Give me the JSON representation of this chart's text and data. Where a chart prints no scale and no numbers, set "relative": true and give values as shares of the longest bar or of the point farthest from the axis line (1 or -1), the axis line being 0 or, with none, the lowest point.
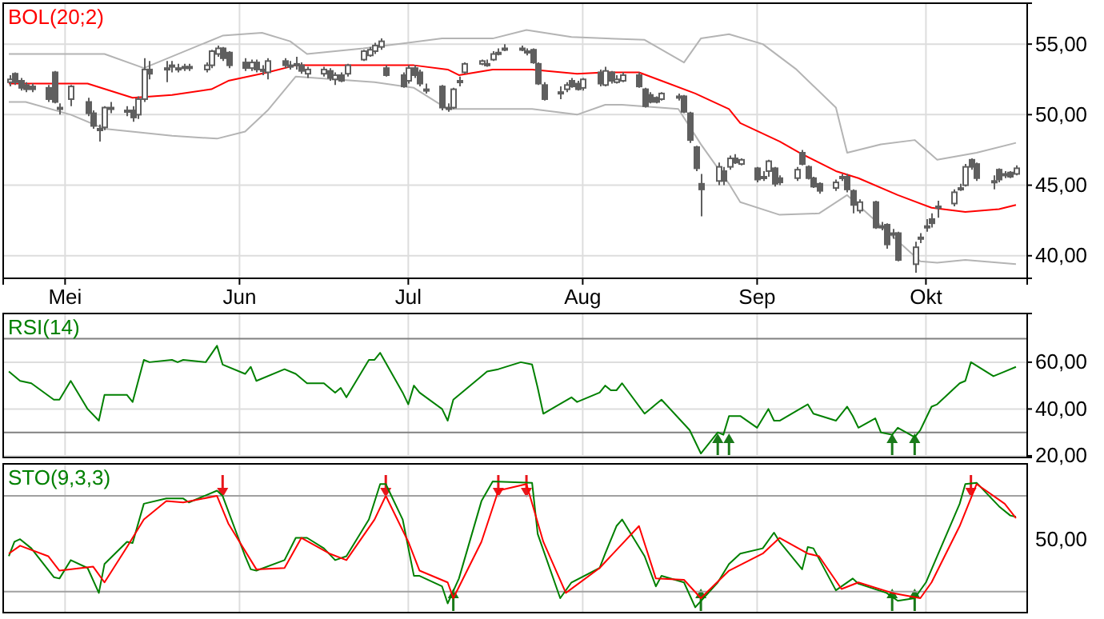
{
  "chart_data": [
    {
      "type": "candlestick",
      "title": "BOL(20;2)",
      "color": "#5f5f5f",
      "x": [
        "--04-21",
        "--04-22",
        "--04-23",
        "--04-24",
        "--04-25",
        "--04-28",
        "--04-29",
        "--04-30",
        "--05-02",
        "--05-05",
        "--05-06",
        "--05-07",
        "--05-08",
        "--05-09",
        "--05-12",
        "--05-13",
        "--05-14",
        "--05-15",
        "--05-16",
        "--05-19",
        "--05-20",
        "--05-21",
        "--05-22",
        "--05-23",
        "--05-26",
        "--05-27",
        "--05-28",
        "--05-29",
        "--05-30",
        "--06-02",
        "--06-03",
        "--06-04",
        "--06-05",
        "--06-06",
        "--06-09",
        "--06-10",
        "--06-11",
        "--06-12",
        "--06-13",
        "--06-16",
        "--06-17",
        "--06-18",
        "--06-19",
        "--06-20",
        "--06-23",
        "--06-24",
        "--06-25",
        "--06-26",
        "--06-27",
        "--06-30",
        "--07-01",
        "--07-02",
        "--07-03",
        "--07-04",
        "--07-07",
        "--07-08",
        "--07-09",
        "--07-10",
        "--07-11",
        "--07-14",
        "--07-15",
        "--07-16",
        "--07-17",
        "--07-18",
        "--07-21",
        "--07-22",
        "--07-23",
        "--07-24",
        "--07-25",
        "--07-28",
        "--07-29",
        "--07-30",
        "--07-31",
        "--08-01",
        "--08-04",
        "--08-05",
        "--08-06",
        "--08-07",
        "--08-08",
        "--08-11",
        "--08-12",
        "--08-13",
        "--08-14",
        "--08-15",
        "--08-18",
        "--08-19",
        "--08-20",
        "--08-21",
        "--08-22",
        "--08-25",
        "--08-26",
        "--08-27",
        "--08-28",
        "--08-29",
        "--09-01",
        "--09-02",
        "--09-03",
        "--09-04",
        "--09-05",
        "--09-08",
        "--09-09",
        "--09-10",
        "--09-11",
        "--09-12",
        "--09-15",
        "--09-16",
        "--09-17",
        "--09-18",
        "--09-19",
        "--09-22",
        "--09-23",
        "--09-24",
        "--09-25",
        "--09-26",
        "--09-29",
        "--09-30",
        "--10-01",
        "--10-02",
        "--10-03",
        "--10-06",
        "--10-07",
        "--10-08",
        "--10-09",
        "--10-10",
        "--10-13",
        "--10-14",
        "--10-15",
        "--10-16",
        "--10-17"
      ],
      "ohlc": [
        [
          52.3,
          52.8,
          52.0,
          52.5
        ],
        [
          52.9,
          53.0,
          52.1,
          52.3
        ],
        [
          52.4,
          52.6,
          51.7,
          51.9
        ],
        [
          52.1,
          52.3,
          51.6,
          51.8
        ],
        [
          52.0,
          52.2,
          51.6,
          51.8
        ],
        [
          51.9,
          52.1,
          50.9,
          51.1
        ],
        [
          53.0,
          53.1,
          50.8,
          50.9
        ],
        [
          50.5,
          50.8,
          50.0,
          50.4
        ],
        [
          51.1,
          52.1,
          50.6,
          52.0
        ],
        [
          50.9,
          51.2,
          49.9,
          50.1
        ],
        [
          50.1,
          50.3,
          49.0,
          49.2
        ],
        [
          49.0,
          49.3,
          48.1,
          48.9
        ],
        [
          49.1,
          50.6,
          48.9,
          50.5
        ],
        [
          50.5,
          50.9,
          50.1,
          50.5
        ],
        [
          50.3,
          50.6,
          49.9,
          50.3
        ],
        [
          50.3,
          50.6,
          49.5,
          49.8
        ],
        [
          50.0,
          51.3,
          49.7,
          51.1
        ],
        [
          51.1,
          54.0,
          50.9,
          53.2
        ],
        [
          53.2,
          53.8,
          52.5,
          52.9
        ],
        [
          53.3,
          53.8,
          52.3,
          53.3
        ],
        [
          53.5,
          53.8,
          53.0,
          53.5
        ],
        [
          53.3,
          53.6,
          53.0,
          53.3
        ],
        [
          53.4,
          53.6,
          53.1,
          53.4
        ],
        [
          53.4,
          53.6,
          53.1,
          53.4
        ],
        [
          53.2,
          53.7,
          53.0,
          53.5
        ],
        [
          53.5,
          54.6,
          53.3,
          54.5
        ],
        [
          54.3,
          54.9,
          54.1,
          54.7
        ],
        [
          54.7,
          54.8,
          53.8,
          54.0
        ],
        [
          54.4,
          54.5,
          53.3,
          53.5
        ],
        [
          53.7,
          54.0,
          53.1,
          53.3
        ],
        [
          53.3,
          53.9,
          53.1,
          53.7
        ],
        [
          53.7,
          53.9,
          53.0,
          53.2
        ],
        [
          53.2,
          53.5,
          52.8,
          53.2
        ],
        [
          53.0,
          54.0,
          52.5,
          53.8
        ],
        [
          53.8,
          54.0,
          53.3,
          53.5
        ],
        [
          53.5,
          53.8,
          53.2,
          53.5
        ],
        [
          53.6,
          54.1,
          53.2,
          53.6
        ],
        [
          53.5,
          53.7,
          52.9,
          53.1
        ],
        [
          52.9,
          53.4,
          52.6,
          53.2
        ],
        [
          52.9,
          53.4,
          52.7,
          53.2
        ],
        [
          53.1,
          53.3,
          52.4,
          52.6
        ],
        [
          52.5,
          53.0,
          52.1,
          52.8
        ],
        [
          52.8,
          53.0,
          52.3,
          52.4
        ],
        [
          52.9,
          53.6,
          52.7,
          53.5
        ],
        [
          53.9,
          54.6,
          53.8,
          54.5
        ],
        [
          54.2,
          54.8,
          54.1,
          54.6
        ],
        [
          54.5,
          55.1,
          54.3,
          54.9
        ],
        [
          54.8,
          55.4,
          54.6,
          55.2
        ],
        [
          53.3,
          53.5,
          52.7,
          52.8
        ],
        [
          52.8,
          53.0,
          51.9,
          52.0
        ],
        [
          52.4,
          53.5,
          52.2,
          53.3
        ],
        [
          53.3,
          53.5,
          52.6,
          52.8
        ],
        [
          53.0,
          53.2,
          52.0,
          52.2
        ],
        [
          51.8,
          52.2,
          51.5,
          51.8
        ],
        [
          52.0,
          52.1,
          50.3,
          50.5
        ],
        [
          50.5,
          50.8,
          50.2,
          50.5
        ],
        [
          50.5,
          51.9,
          50.4,
          51.8
        ],
        [
          52.4,
          52.7,
          52.0,
          52.4
        ],
        [
          53.0,
          53.7,
          52.9,
          53.6
        ],
        [
          53.6,
          53.9,
          53.5,
          53.8
        ],
        [
          53.6,
          53.9,
          53.4,
          53.6
        ],
        [
          53.9,
          54.5,
          53.8,
          54.3
        ],
        [
          54.4,
          54.7,
          54.2,
          54.4
        ],
        [
          54.7,
          55.0,
          54.5,
          54.7
        ],
        [
          54.7,
          54.9,
          54.5,
          54.7
        ],
        [
          54.5,
          54.7,
          54.2,
          54.5
        ],
        [
          54.6,
          54.7,
          53.6,
          53.7
        ],
        [
          53.6,
          53.7,
          52.1,
          52.2
        ],
        [
          52.1,
          52.3,
          51.0,
          51.1
        ],
        [
          51.6,
          52.0,
          51.1,
          51.6
        ],
        [
          51.8,
          52.3,
          51.6,
          52.1
        ],
        [
          52.4,
          52.6,
          51.9,
          52.0
        ],
        [
          52.2,
          52.4,
          51.7,
          51.8
        ],
        [
          51.9,
          52.6,
          51.7,
          52.5
        ],
        [
          53.0,
          53.2,
          52.0,
          52.2
        ],
        [
          52.1,
          53.4,
          52.0,
          53.1
        ],
        [
          53.0,
          53.1,
          52.2,
          52.4
        ],
        [
          52.3,
          52.8,
          52.2,
          52.5
        ],
        [
          52.4,
          53.0,
          52.3,
          52.8
        ],
        [
          52.8,
          53.0,
          51.9,
          52.0
        ],
        [
          51.8,
          51.9,
          50.5,
          50.6
        ],
        [
          51.4,
          51.6,
          50.8,
          50.9
        ],
        [
          51.2,
          51.3,
          50.8,
          50.9
        ],
        [
          51.1,
          51.6,
          51.0,
          51.5
        ],
        [
          51.3,
          51.5,
          51.0,
          51.3
        ],
        [
          51.3,
          51.4,
          50.1,
          50.2
        ],
        [
          50.1,
          50.2,
          48.0,
          48.2
        ],
        [
          47.7,
          47.8,
          46.0,
          46.2
        ],
        [
          45.1,
          45.8,
          42.8,
          44.7
        ],
        [
          45.3,
          46.6,
          45.0,
          46.3
        ],
        [
          46.0,
          46.3,
          45.0,
          45.3
        ],
        [
          46.3,
          47.1,
          46.1,
          46.9
        ],
        [
          46.9,
          47.2,
          46.5,
          46.6
        ],
        [
          46.5,
          46.9,
          46.4,
          46.8
        ],
        [
          46.2,
          46.3,
          45.2,
          45.4
        ],
        [
          45.6,
          46.0,
          45.3,
          45.6
        ],
        [
          46.0,
          46.8,
          45.6,
          46.7
        ],
        [
          46.2,
          46.3,
          44.9,
          45.1
        ],
        [
          45.5,
          45.7,
          45.0,
          45.2
        ],
        [
          45.5,
          46.3,
          45.3,
          46.1
        ],
        [
          47.3,
          47.5,
          46.4,
          46.5
        ],
        [
          46.3,
          46.4,
          45.4,
          45.5
        ],
        [
          45.5,
          45.6,
          44.8,
          44.9
        ],
        [
          45.1,
          45.2,
          44.4,
          44.6
        ],
        [
          44.8,
          45.4,
          44.6,
          45.2
        ],
        [
          45.6,
          45.8,
          45.3,
          45.6
        ],
        [
          45.6,
          45.8,
          44.5,
          44.7
        ],
        [
          44.6,
          44.7,
          43.0,
          43.6
        ],
        [
          43.2,
          44.0,
          43.0,
          43.8
        ],
        [
          43.8,
          43.9,
          41.9,
          42.0
        ],
        [
          42.1,
          42.4,
          41.8,
          42.1
        ],
        [
          42.2,
          42.3,
          40.5,
          40.8
        ],
        [
          41.6,
          41.9,
          41.2,
          41.6
        ],
        [
          41.6,
          41.7,
          39.6,
          39.7
        ],
        [
          39.4,
          41.0,
          38.8,
          40.6
        ],
        [
          41.3,
          41.6,
          40.9,
          41.3
        ],
        [
          42.1,
          42.6,
          41.7,
          42.1
        ],
        [
          42.6,
          43.0,
          42.0,
          42.3
        ],
        [
          43.5,
          43.9,
          42.7,
          43.5
        ],
        [
          43.7,
          44.7,
          43.5,
          44.5
        ],
        [
          44.8,
          45.1,
          44.6,
          44.8
        ],
        [
          45.0,
          46.5,
          44.9,
          46.3
        ],
        [
          46.8,
          46.9,
          46.1,
          46.3
        ],
        [
          46.5,
          46.6,
          45.3,
          45.5
        ],
        [
          45.3,
          45.7,
          44.7,
          45.3
        ],
        [
          46.1,
          46.2,
          45.2,
          45.4
        ],
        [
          45.8,
          46.0,
          45.5,
          45.8
        ],
        [
          45.9,
          46.0,
          45.5,
          45.6
        ],
        [
          45.8,
          46.4,
          45.7,
          46.2
        ]
      ],
      "series": [
        {
          "type": "line",
          "color": "#b4b4b4",
          "x": [
            "--04-21",
            "--05-08",
            "--05-15",
            "--05-29",
            "--06-05",
            "--06-10",
            "--06-13",
            "--06-23",
            "--07-07",
            "--07-16",
            "--07-22",
            "--07-30",
            "--08-12",
            "--08-19",
            "--08-22",
            "--08-27",
            "--09-02",
            "--09-08",
            "--09-15",
            "--09-17",
            "--09-23",
            "--09-29",
            "--10-03",
            "--10-10",
            "--10-17"
          ],
          "values": [
            54.3,
            54.3,
            53.3,
            55.6,
            55.8,
            55.2,
            54.3,
            54.7,
            55.4,
            55.4,
            56.0,
            55.5,
            55.3,
            53.7,
            55.4,
            55.7,
            55.0,
            53.2,
            50.5,
            47.3,
            47.9,
            48.2,
            46.8,
            47.3,
            48.0
          ]
        },
        {
          "type": "line",
          "color": "#ff0000",
          "x": [
            "--04-21",
            "--05-05",
            "--05-13",
            "--05-20",
            "--05-27",
            "--05-30",
            "--06-06",
            "--06-11",
            "--06-25",
            "--07-02",
            "--07-08",
            "--07-10",
            "--07-16",
            "--07-23",
            "--07-31",
            "--08-05",
            "--08-11",
            "--08-15",
            "--08-21",
            "--08-27",
            "--08-29",
            "--09-05",
            "--09-09",
            "--09-15",
            "--09-19",
            "--09-26",
            "--10-02",
            "--10-08",
            "--10-14",
            "--10-17"
          ],
          "values": [
            52.2,
            52.2,
            51.2,
            51.4,
            51.8,
            52.4,
            53.0,
            53.5,
            53.5,
            53.5,
            53.2,
            52.8,
            53.2,
            53.2,
            52.9,
            53.0,
            53.0,
            52.4,
            51.5,
            50.4,
            49.4,
            48.1,
            47.2,
            46.0,
            45.5,
            44.3,
            43.4,
            43.1,
            43.3,
            43.6
          ]
        },
        {
          "type": "line",
          "color": "#b4b4b4",
          "x": [
            "--04-21",
            "--04-24",
            "--05-02",
            "--05-08",
            "--05-20",
            "--05-28",
            "--06-02",
            "--06-06",
            "--06-11",
            "--06-25",
            "--07-02",
            "--07-08",
            "--07-23",
            "--07-31",
            "--08-05",
            "--08-08",
            "--08-18",
            "--08-22",
            "--08-27",
            "--08-29",
            "--09-05",
            "--09-12",
            "--09-17",
            "--09-25",
            "--09-30",
            "--10-03",
            "--10-08",
            "--10-17"
          ],
          "values": [
            50.9,
            50.9,
            50.0,
            49.0,
            48.5,
            48.3,
            48.8,
            50.3,
            52.7,
            52.3,
            51.9,
            50.4,
            50.4,
            50.0,
            50.7,
            50.7,
            50.4,
            47.9,
            45.1,
            43.8,
            42.9,
            43.0,
            44.3,
            41.4,
            39.6,
            39.5,
            39.7,
            39.4
          ]
        }
      ],
      "xlim": [
        "--04-20",
        "--10-19"
      ],
      "xticks": [
        {
          "value": "--05-01",
          "label": "Mei"
        },
        {
          "value": "--06-01",
          "label": "Jun"
        },
        {
          "value": "--07-01",
          "label": "Jul"
        },
        {
          "value": "--08-01",
          "label": "Aug"
        },
        {
          "value": "--09-01",
          "label": "Sep"
        },
        {
          "value": "--10-01",
          "label": "Okt"
        }
      ],
      "ylim": [
        38.4,
        57.9
      ],
      "yticks": [
        {
          "value": 40,
          "label": "40,00"
        },
        {
          "value": 45,
          "label": "45,00"
        },
        {
          "value": 50,
          "label": "50,00"
        },
        {
          "value": 55,
          "label": "55,00"
        }
      ],
      "grid": true
    },
    {
      "type": "line",
      "title": "RSI(14)",
      "series": [
        {
          "color": "#008000",
          "x": [
            "--04-21",
            "--04-23",
            "--04-25",
            "--04-29",
            "--04-30",
            "--05-02",
            "--05-05",
            "--05-07",
            "--05-08",
            "--05-12",
            "--05-13",
            "--05-15",
            "--05-16",
            "--05-20",
            "--05-21",
            "--05-22",
            "--05-26",
            "--05-28",
            "--05-29",
            "--06-02",
            "--06-03",
            "--06-04",
            "--06-09",
            "--06-11",
            "--06-13",
            "--06-16",
            "--06-18",
            "--06-19",
            "--06-20",
            "--06-24",
            "--06-25",
            "--06-26",
            "--06-30",
            "--07-01",
            "--07-02",
            "--07-03",
            "--07-07",
            "--07-08",
            "--07-09",
            "--07-14",
            "--07-15",
            "--07-17",
            "--07-21",
            "--07-23",
            "--07-24",
            "--07-25",
            "--07-30",
            "--07-31",
            "--08-04",
            "--08-05",
            "--08-06",
            "--08-07",
            "--08-08",
            "--08-12",
            "--08-14",
            "--08-15",
            "--08-20",
            "--08-22",
            "--08-25",
            "--08-26",
            "--08-27",
            "--08-29",
            "--09-01",
            "--09-03",
            "--09-04",
            "--09-05",
            "--09-10",
            "--09-11",
            "--09-15",
            "--09-17",
            "--09-18",
            "--09-19",
            "--09-22",
            "--09-23",
            "--09-25",
            "--09-26",
            "--09-29",
            "--09-30",
            "--10-02",
            "--10-03",
            "--10-07",
            "--10-08",
            "--10-09",
            "--10-13",
            "--10-15",
            "--10-17"
          ],
          "values": [
            56,
            52,
            51,
            44,
            44,
            52,
            40,
            35,
            46,
            46,
            43,
            61,
            60,
            61,
            60,
            61,
            60,
            67,
            59,
            55,
            58,
            52,
            57,
            55,
            51,
            51,
            47,
            49,
            45,
            61,
            61,
            64,
            47,
            42,
            50,
            47,
            40,
            35,
            44,
            54,
            56,
            57,
            60,
            59,
            49,
            38,
            45,
            43,
            47,
            50,
            48,
            48,
            51,
            38,
            42,
            44,
            31,
            21,
            30,
            29,
            37,
            37,
            32,
            40,
            35,
            35,
            42,
            38,
            35,
            41,
            37,
            32,
            36,
            30,
            29,
            32,
            28,
            31,
            41,
            42,
            51,
            52,
            60,
            54,
            56,
            58
          ]
        }
      ],
      "xlim": [
        "--04-20",
        "--10-19"
      ],
      "xticks": [
        {
          "value": "--05-01",
          "label": null
        },
        {
          "value": "--06-01",
          "label": null
        },
        {
          "value": "--07-01",
          "label": null
        },
        {
          "value": "--08-01",
          "label": null
        },
        {
          "value": "--09-01",
          "label": null
        },
        {
          "value": "--10-01",
          "label": null
        }
      ],
      "ylim": [
        19.3,
        80.8
      ],
      "yticks": [
        {
          "value": 20,
          "label": "20,00"
        },
        {
          "value": 40,
          "label": "40,00"
        },
        {
          "value": 60,
          "label": "60,00"
        }
      ],
      "ref_lines": [
        {
          "axis": "y",
          "value": 70,
          "color": "#808080"
        },
        {
          "axis": "y",
          "value": 30,
          "color": "#808080"
        }
      ],
      "grid": true,
      "tick_labels": "y"
    },
    {
      "type": "line",
      "title": "STO(9,3,3)",
      "relative": true,
      "annotations": [
        "50,00"
      ],
      "series": [
        {
          "color": "#008000",
          "x": [
            "--04-21",
            "--04-22",
            "--04-23",
            "--04-25",
            "--04-29",
            "--04-30",
            "--05-02",
            "--05-05",
            "--05-07",
            "--05-08",
            "--05-12",
            "--05-13",
            "--05-15",
            "--05-19",
            "--05-22",
            "--05-23",
            "--05-28",
            "--05-29",
            "--06-02",
            "--06-03",
            "--06-04",
            "--06-09",
            "--06-11",
            "--06-13",
            "--06-16",
            "--06-18",
            "--06-20",
            "--06-24",
            "--06-26",
            "--06-27",
            "--06-30",
            "--07-02",
            "--07-03",
            "--07-07",
            "--07-08",
            "--07-10",
            "--07-14",
            "--07-16",
            "--07-23",
            "--07-24",
            "--07-28",
            "--07-30",
            "--08-04",
            "--08-05",
            "--08-07",
            "--08-08",
            "--08-12",
            "--08-14",
            "--08-15",
            "--08-19",
            "--08-21",
            "--08-25",
            "--08-27",
            "--08-29",
            "--09-02",
            "--09-04",
            "--09-05",
            "--09-09",
            "--09-10",
            "--09-11",
            "--09-15",
            "--09-18",
            "--09-19",
            "--09-24",
            "--09-26",
            "--09-29",
            "--10-01",
            "--10-07",
            "--10-08",
            "--10-10",
            "--10-14",
            "--10-16",
            "--10-17"
          ],
          "values": [
            0.43,
            0.54,
            0.56,
            0.49,
            0.27,
            0.26,
            0.4,
            0.34,
            0.15,
            0.37,
            0.54,
            0.53,
            0.83,
            0.87,
            0.87,
            0.84,
            0.93,
            0.89,
            0.43,
            0.33,
            0.32,
            0.4,
            0.57,
            0.57,
            0.49,
            0.4,
            0.43,
            0.71,
            0.98,
            0.98,
            0.71,
            0.28,
            0.28,
            0.2,
            0.07,
            0.26,
            0.85,
            1,
            0.99,
            0.6,
            0.11,
            0.23,
            0.34,
            0.45,
            0.66,
            0.71,
            0.43,
            0.2,
            0.28,
            0.23,
            0.04,
            0.23,
            0.37,
            0.45,
            0.49,
            0.61,
            0.54,
            0.33,
            0.5,
            0.49,
            0.17,
            0.26,
            0.22,
            0.15,
            0.09,
            0.11,
            0.23,
            0.83,
            0.98,
            0.99,
            0.81,
            0.74,
            0.73
          ]
        },
        {
          "color": "#ff0000",
          "x": [
            "--04-21",
            "--04-23",
            "--04-28",
            "--04-30",
            "--05-06",
            "--05-08",
            "--05-12",
            "--05-15",
            "--05-19",
            "--05-22",
            "--05-28",
            "--05-30",
            "--06-04",
            "--06-09",
            "--06-12",
            "--06-17",
            "--06-20",
            "--06-25",
            "--06-27",
            "--07-01",
            "--07-03",
            "--07-08",
            "--07-09",
            "--07-14",
            "--07-17",
            "--07-22",
            "--07-25",
            "--07-29",
            "--08-04",
            "--08-11",
            "--08-14",
            "--08-19",
            "--08-22",
            "--08-27",
            "--09-02",
            "--09-05",
            "--09-10",
            "--09-12",
            "--09-16",
            "--09-19",
            "--09-25",
            "--09-30",
            "--10-02",
            "--10-07",
            "--10-10",
            "--10-15",
            "--10-17"
          ],
          "values": [
            0.45,
            0.51,
            0.43,
            0.32,
            0.35,
            0.23,
            0.5,
            0.71,
            0.85,
            0.84,
            0.89,
            0.68,
            0.33,
            0.34,
            0.57,
            0.45,
            0.4,
            0.71,
            0.89,
            0.54,
            0.32,
            0.23,
            0.11,
            0.54,
            0.93,
            0.98,
            0.54,
            0.15,
            0.34,
            0.66,
            0.26,
            0.25,
            0.11,
            0.32,
            0.45,
            0.57,
            0.45,
            0.43,
            0.18,
            0.23,
            0.15,
            0.11,
            0.23,
            0.66,
            0.98,
            0.83,
            0.72
          ]
        }
      ],
      "xlim": [
        "--04-20",
        "--10-19"
      ],
      "xticks": [
        {
          "value": "--05-01",
          "label": null
        },
        {
          "value": "--06-01",
          "label": null
        },
        {
          "value": "--07-01",
          "label": null
        },
        {
          "value": "--08-01",
          "label": null
        },
        {
          "value": "--09-01",
          "label": null
        },
        {
          "value": "--10-01",
          "label": null
        }
      ],
      "ref_lines": [
        {
          "axis": "y",
          "value": 0.89,
          "color": "#a0a0a0"
        },
        {
          "axis": "y",
          "value": 0.16,
          "color": "#a0a0a0"
        }
      ],
      "grid": "x",
      "tick_labels": false
    }
  ]
}
